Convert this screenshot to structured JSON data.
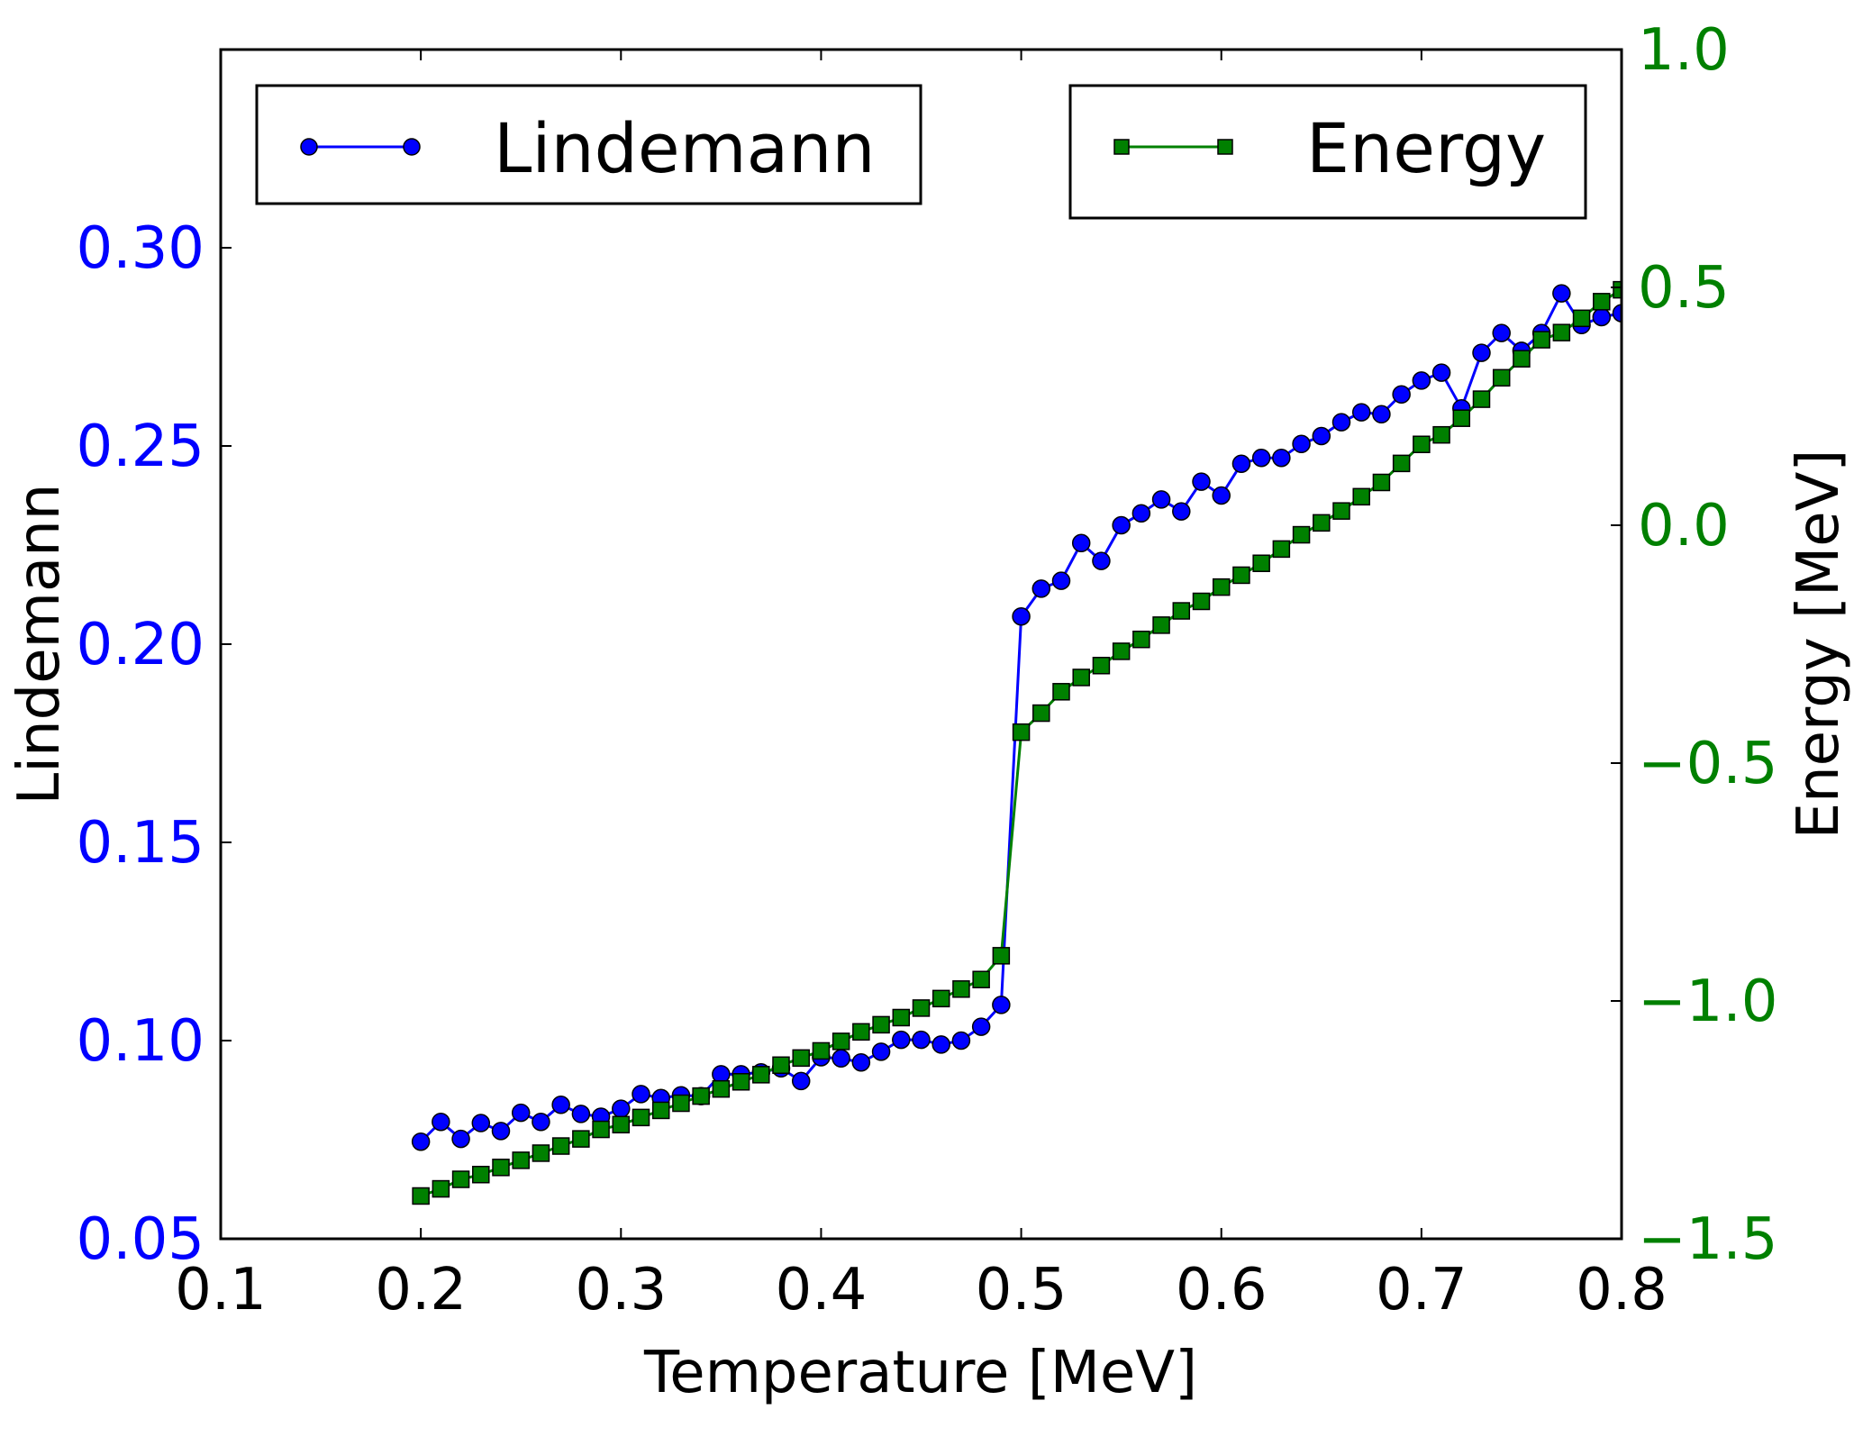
{
  "chart_data": {
    "type": "line",
    "dual_axis": true,
    "x": [
      0.2,
      0.21,
      0.22,
      0.23,
      0.24,
      0.25,
      0.26,
      0.27,
      0.28,
      0.29,
      0.3,
      0.31,
      0.32,
      0.33,
      0.34,
      0.35,
      0.36,
      0.37,
      0.38,
      0.39,
      0.4,
      0.41,
      0.42,
      0.43,
      0.44,
      0.45,
      0.46,
      0.47,
      0.48,
      0.49,
      0.5,
      0.51,
      0.52,
      0.53,
      0.54,
      0.55,
      0.56,
      0.57,
      0.58,
      0.59,
      0.6,
      0.61,
      0.62,
      0.63,
      0.64,
      0.65,
      0.66,
      0.67,
      0.68,
      0.69,
      0.7,
      0.71,
      0.72,
      0.73,
      0.74,
      0.75,
      0.76,
      0.77,
      0.78,
      0.79,
      0.8
    ],
    "xlabel": "Temperature [MeV]",
    "xlim": [
      0.1,
      0.8
    ],
    "xticks": [
      "0.1",
      "0.2",
      "0.3",
      "0.4",
      "0.5",
      "0.6",
      "0.7",
      "0.8"
    ],
    "ylabel_left": "Lindemann",
    "ylim_left": [
      0.05,
      0.35
    ],
    "yticks_left": [
      "0.05",
      "0.10",
      "0.15",
      "0.20",
      "0.25",
      "0.30"
    ],
    "ylabel_right": "Energy [MeV]",
    "ylim_right": [
      -1.5,
      1.0
    ],
    "yticks_right": [
      "−1.5",
      "−1.0",
      "−0.5",
      "0.0",
      "0.5",
      "1.0"
    ],
    "series": [
      {
        "name": "Lindemann",
        "axis": "left",
        "color": "#0000ff",
        "marker": "circle",
        "values": [
          0.0745,
          0.0795,
          0.0752,
          0.0792,
          0.0772,
          0.0818,
          0.0795,
          0.0838,
          0.0815,
          0.0808,
          0.0828,
          0.0865,
          0.0855,
          0.0862,
          0.086,
          0.0915,
          0.0915,
          0.092,
          0.093,
          0.0898,
          0.0958,
          0.0955,
          0.0945,
          0.0972,
          0.1002,
          0.1002,
          0.099,
          0.1,
          0.1035,
          0.109,
          0.207,
          0.214,
          0.216,
          0.2255,
          0.221,
          0.23,
          0.233,
          0.2365,
          0.2335,
          0.241,
          0.2375,
          0.2455,
          0.247,
          0.247,
          0.2505,
          0.2525,
          0.256,
          0.2585,
          0.258,
          0.263,
          0.2665,
          0.2685,
          0.2595,
          0.2735,
          0.2785,
          0.274,
          0.2785,
          0.2885,
          0.2805,
          0.2825,
          0.2835
        ]
      },
      {
        "name": "Energy",
        "axis": "right",
        "color": "#008000",
        "marker": "square",
        "values": [
          -1.41,
          -1.395,
          -1.375,
          -1.365,
          -1.35,
          -1.335,
          -1.32,
          -1.305,
          -1.29,
          -1.27,
          -1.26,
          -1.245,
          -1.23,
          -1.215,
          -1.2,
          -1.185,
          -1.17,
          -1.155,
          -1.135,
          -1.12,
          -1.105,
          -1.085,
          -1.065,
          -1.05,
          -1.035,
          -1.015,
          -0.995,
          -0.975,
          -0.955,
          -0.905,
          -0.435,
          -0.395,
          -0.35,
          -0.32,
          -0.295,
          -0.265,
          -0.24,
          -0.21,
          -0.18,
          -0.16,
          -0.13,
          -0.105,
          -0.08,
          -0.05,
          -0.02,
          0.005,
          0.03,
          0.06,
          0.09,
          0.13,
          0.17,
          0.19,
          0.225,
          0.265,
          0.31,
          0.35,
          0.39,
          0.405,
          0.435,
          0.47,
          0.495
        ]
      }
    ]
  }
}
